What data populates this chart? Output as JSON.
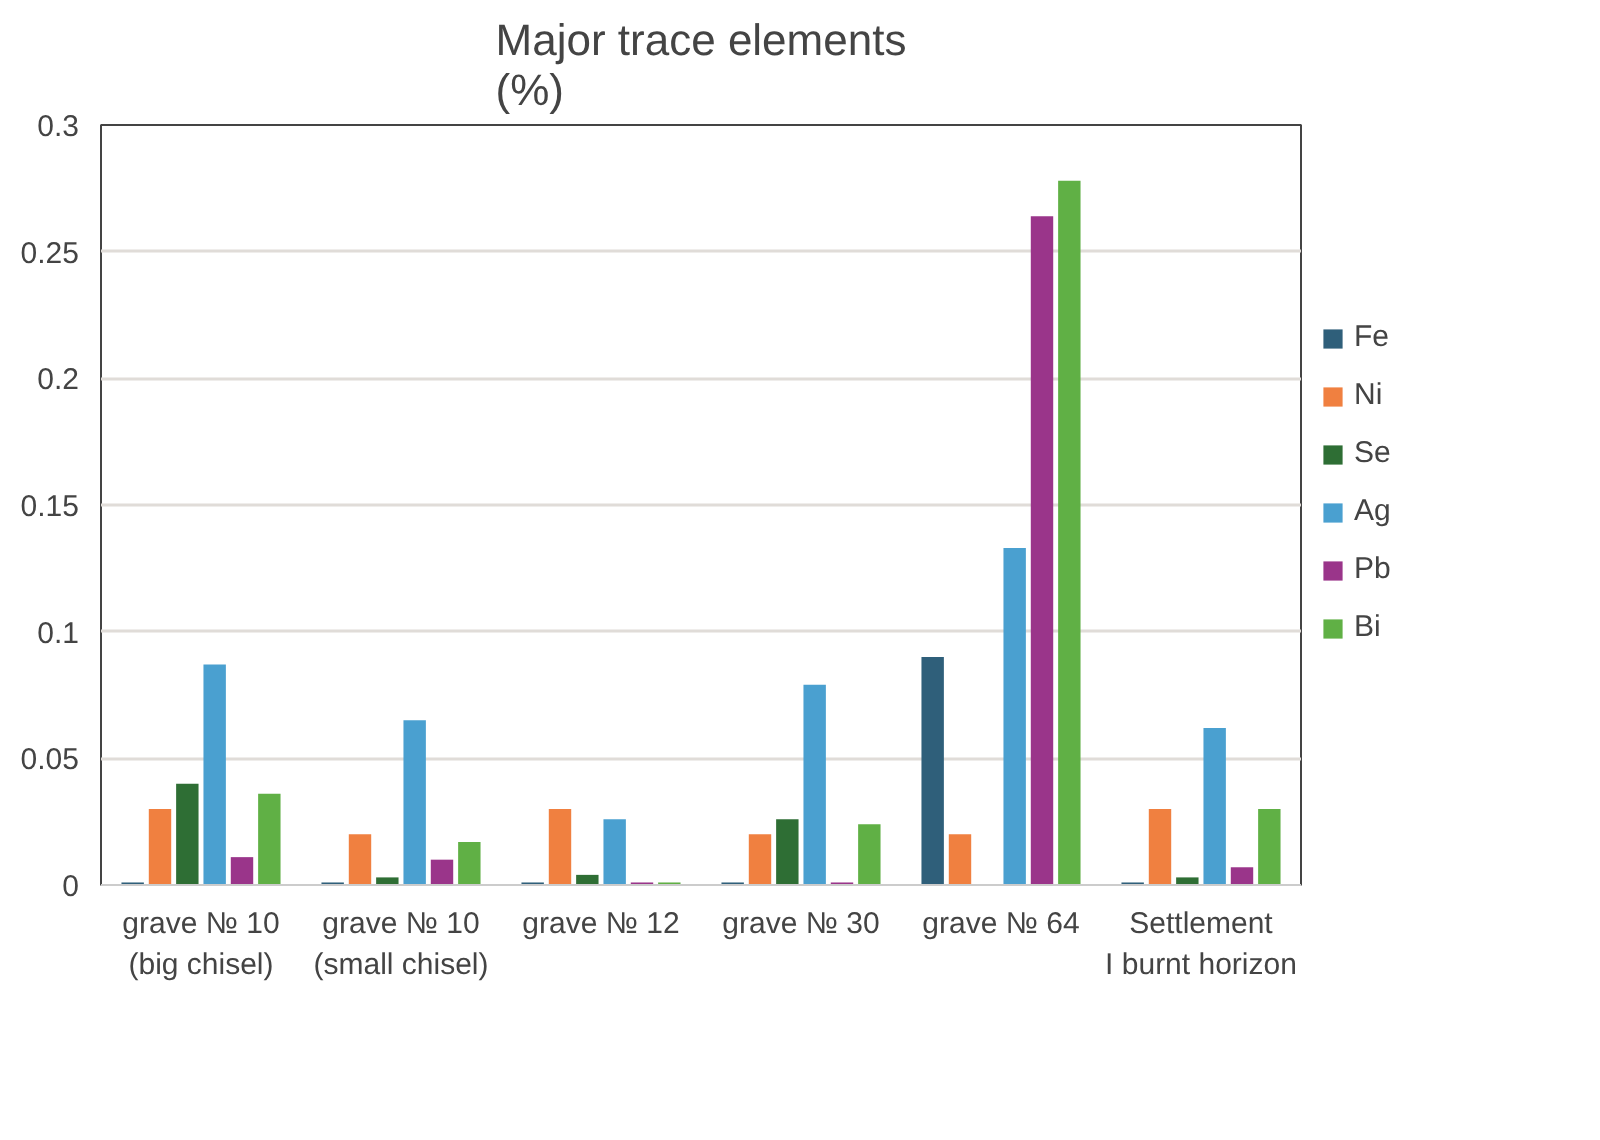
{
  "chart_data": {
    "type": "bar",
    "title": "Major trace elements\n(%)",
    "categories": [
      "grave № 10\n(big chisel)",
      "grave № 10\n(small chisel)",
      "grave № 12",
      "grave № 30",
      "grave № 64",
      "Settlement\nI burnt horizon"
    ],
    "series": [
      {
        "name": "Fe",
        "color": "#2f5f7a",
        "values": [
          0.001,
          0.001,
          0.001,
          0.001,
          0.09,
          0.001
        ]
      },
      {
        "name": "Ni",
        "color": "#f08040",
        "values": [
          0.03,
          0.02,
          0.03,
          0.02,
          0.02,
          0.03
        ]
      },
      {
        "name": "Se",
        "color": "#2e6e34",
        "values": [
          0.04,
          0.003,
          0.004,
          0.026,
          null,
          0.003
        ]
      },
      {
        "name": "Ag",
        "color": "#4aa0d0",
        "values": [
          0.087,
          0.065,
          0.026,
          0.079,
          0.133,
          0.062
        ]
      },
      {
        "name": "Pb",
        "color": "#9a358a",
        "values": [
          0.011,
          0.01,
          0.001,
          0.001,
          0.264,
          0.007
        ]
      },
      {
        "name": "Bi",
        "color": "#60b045",
        "values": [
          0.036,
          0.017,
          0.001,
          0.024,
          0.278,
          0.03
        ]
      }
    ],
    "ylim": [
      0,
      0.3
    ],
    "yticks": [
      0,
      0.05,
      0.1,
      0.15,
      0.2,
      0.25,
      0.3
    ],
    "grid": "y",
    "legend": "right"
  }
}
